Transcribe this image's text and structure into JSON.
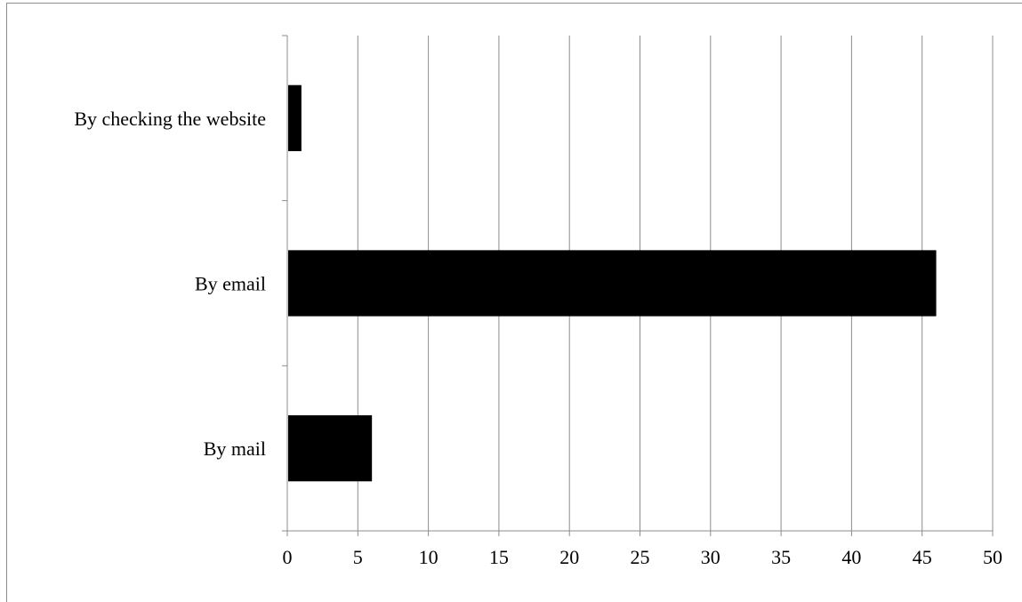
{
  "chart_data": {
    "type": "bar",
    "orientation": "horizontal",
    "title": "",
    "xlabel": "",
    "ylabel": "",
    "categories": [
      "By checking the website",
      "By email",
      "By mail"
    ],
    "values": [
      1,
      46,
      6
    ],
    "xlim": [
      0,
      50
    ],
    "xticks": [
      0,
      5,
      10,
      15,
      20,
      25,
      30,
      35,
      40,
      45,
      50
    ],
    "grid": "vertical",
    "legend": "none",
    "bar_color": "#000000",
    "grid_color": "#8c8c8c"
  }
}
